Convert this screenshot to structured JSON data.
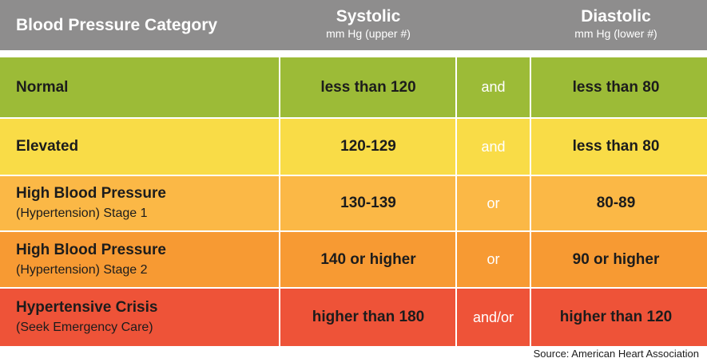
{
  "header": {
    "category": "Blood Pressure Category",
    "systolic": "Systolic",
    "systolic_unit": "mm Hg (upper #)",
    "diastolic": "Diastolic",
    "diastolic_unit": "mm Hg (lower #)",
    "color": "#8e8d8d"
  },
  "rows": [
    {
      "category": "Normal",
      "subtitle": "",
      "systolic": "less than 120",
      "connector": "and",
      "diastolic": "less than 80",
      "color": "#9cbb37"
    },
    {
      "category": "Elevated",
      "subtitle": "",
      "systolic": "120-129",
      "connector": "and",
      "diastolic": "less than 80",
      "color": "#f9dc47"
    },
    {
      "category": "High Blood Pressure",
      "subtitle": "(Hypertension) Stage 1",
      "systolic": "130-139",
      "connector": "or",
      "diastolic": "80-89",
      "color": "#fbb846"
    },
    {
      "category": "High Blood Pressure",
      "subtitle": "(Hypertension) Stage 2",
      "systolic": "140 or higher",
      "connector": "or",
      "diastolic": "90 or higher",
      "color": "#f79a33"
    },
    {
      "category": "Hypertensive Crisis",
      "subtitle": "(Seek Emergency Care)",
      "systolic": "higher than 180",
      "connector": "and/or",
      "diastolic": "higher than 120",
      "color": "#ee5338"
    }
  ],
  "source": "Source: American Heart Association"
}
